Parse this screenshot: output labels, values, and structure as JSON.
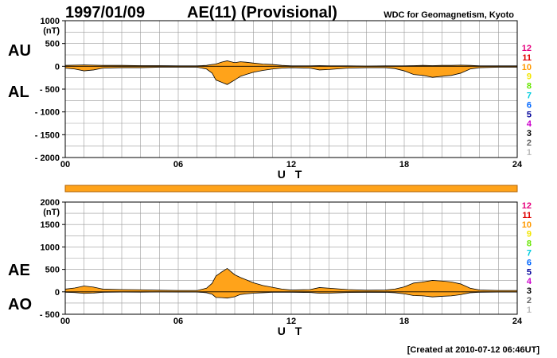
{
  "header": {
    "date": "1997/01/09",
    "title": "AE(11) (Provisional)",
    "org": "WDC for Geomagnetism, Kyoto"
  },
  "footer": "[Created at 2010-07-12 06:46UT]",
  "colors": {
    "fill": "#ffa31a",
    "grid": "#999999",
    "bar": "#ffa31a"
  },
  "legend": [
    {
      "label": "12",
      "color": "#e6007e"
    },
    {
      "label": "11",
      "color": "#e00000"
    },
    {
      "label": "10",
      "color": "#ff9900"
    },
    {
      "label": "9",
      "color": "#f2e600"
    },
    {
      "label": "8",
      "color": "#66e600"
    },
    {
      "label": "7",
      "color": "#00ccdd"
    },
    {
      "label": "6",
      "color": "#0066ff"
    },
    {
      "label": "5",
      "color": "#000099"
    },
    {
      "label": "4",
      "color": "#cc00cc"
    },
    {
      "label": "3",
      "color": "#000000"
    },
    {
      "label": "2",
      "color": "#666666"
    },
    {
      "label": "1",
      "color": "#bbbbbb"
    }
  ],
  "chart_data": [
    {
      "type": "area",
      "title": "AU / AL",
      "labels_upper": "AU",
      "labels_lower": "AL",
      "unit": "(nT)",
      "xlabel": "U T",
      "xlim": [
        0,
        24
      ],
      "xticks": [
        "00",
        "06",
        "12",
        "18",
        "24"
      ],
      "ylim": [
        -2000,
        1000
      ],
      "yticks": [
        1000,
        500,
        0,
        -500,
        -1000,
        -1500,
        -2000
      ],
      "series": [
        {
          "name": "AU",
          "x": [
            0,
            0.5,
            1,
            1.5,
            2,
            3,
            4,
            5,
            6,
            7,
            7.5,
            7.8,
            8,
            8.3,
            8.6,
            8.8,
            9,
            9.3,
            9.6,
            10,
            10.5,
            11,
            11.5,
            12,
            13,
            13.5,
            14,
            15,
            16,
            17,
            17.5,
            18,
            18.5,
            19,
            19.5,
            20,
            20.5,
            21,
            21.5,
            22,
            23,
            24
          ],
          "values": [
            20,
            25,
            30,
            25,
            20,
            20,
            15,
            15,
            10,
            10,
            20,
            40,
            50,
            90,
            120,
            100,
            80,
            100,
            90,
            70,
            50,
            40,
            20,
            10,
            10,
            15,
            10,
            10,
            5,
            10,
            10,
            10,
            15,
            20,
            15,
            20,
            20,
            25,
            20,
            10,
            10,
            10
          ]
        },
        {
          "name": "AL",
          "x": [
            0,
            0.5,
            1,
            1.5,
            2,
            3,
            4,
            5,
            6,
            7,
            7.5,
            7.8,
            8,
            8.3,
            8.6,
            8.8,
            9,
            9.3,
            9.6,
            10,
            10.5,
            11,
            11.5,
            12,
            13,
            13.5,
            14,
            15,
            16,
            17,
            17.5,
            18,
            18.5,
            19,
            19.5,
            20,
            20.5,
            21,
            21.5,
            22,
            23,
            24
          ],
          "values": [
            -40,
            -60,
            -100,
            -80,
            -40,
            -30,
            -30,
            -20,
            -20,
            -20,
            -60,
            -150,
            -300,
            -350,
            -400,
            -350,
            -300,
            -220,
            -180,
            -130,
            -90,
            -60,
            -40,
            -30,
            -40,
            -80,
            -70,
            -40,
            -30,
            -30,
            -50,
            -100,
            -180,
            -200,
            -240,
            -220,
            -200,
            -150,
            -60,
            -30,
            -20,
            -20
          ]
        }
      ]
    },
    {
      "type": "area",
      "title": "AE / AO",
      "labels_upper": "AE",
      "labels_lower": "AO",
      "unit": "(nT)",
      "xlabel": "U T",
      "xlim": [
        0,
        24
      ],
      "xticks": [
        "00",
        "06",
        "12",
        "18",
        "24"
      ],
      "ylim": [
        -500,
        2000
      ],
      "yticks": [
        2000,
        1500,
        1000,
        500,
        0,
        -500
      ],
      "series": [
        {
          "name": "AE",
          "x": [
            0,
            0.5,
            1,
            1.5,
            2,
            3,
            4,
            5,
            6,
            7,
            7.5,
            7.8,
            8,
            8.3,
            8.6,
            8.8,
            9,
            9.3,
            9.6,
            10,
            10.5,
            11,
            11.5,
            12,
            13,
            13.5,
            14,
            15,
            16,
            17,
            17.5,
            18,
            18.5,
            19,
            19.5,
            20,
            20.5,
            21,
            21.5,
            22,
            23,
            24
          ],
          "values": [
            60,
            85,
            130,
            105,
            60,
            50,
            45,
            35,
            30,
            30,
            80,
            190,
            350,
            440,
            520,
            450,
            380,
            320,
            270,
            200,
            140,
            100,
            60,
            40,
            50,
            95,
            80,
            50,
            35,
            40,
            60,
            110,
            195,
            220,
            255,
            240,
            220,
            175,
            80,
            40,
            30,
            30
          ]
        },
        {
          "name": "AO",
          "x": [
            0,
            0.5,
            1,
            1.5,
            2,
            3,
            4,
            5,
            6,
            7,
            7.5,
            7.8,
            8,
            8.3,
            8.6,
            8.8,
            9,
            9.3,
            9.6,
            10,
            10.5,
            11,
            11.5,
            12,
            13,
            13.5,
            14,
            15,
            16,
            17,
            17.5,
            18,
            18.5,
            19,
            19.5,
            20,
            20.5,
            21,
            21.5,
            22,
            23,
            24
          ],
          "values": [
            -10,
            -17,
            -35,
            -28,
            -10,
            -5,
            -8,
            -3,
            -5,
            -5,
            -20,
            -55,
            -125,
            -130,
            -140,
            -125,
            -110,
            -60,
            -45,
            -30,
            -20,
            -10,
            -10,
            -10,
            -15,
            -33,
            -30,
            -15,
            -13,
            -10,
            -20,
            -45,
            -83,
            -90,
            -113,
            -100,
            -90,
            -63,
            -20,
            -10,
            -5,
            -5
          ]
        }
      ]
    }
  ]
}
